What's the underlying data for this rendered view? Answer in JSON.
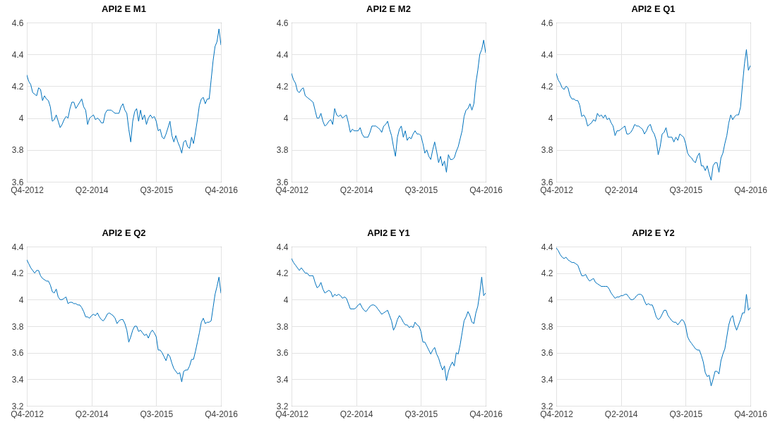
{
  "chart_data": [
    {
      "type": "line",
      "title": "API2 E M1",
      "ylim": [
        3.6,
        4.6
      ],
      "yticks": [
        3.6,
        3.8,
        4,
        4.2,
        4.4,
        4.6
      ],
      "grid": true,
      "categories": [
        "Q4-2012",
        null,
        null,
        null,
        null,
        null,
        null,
        null,
        null,
        null,
        null,
        null,
        null,
        null,
        null,
        null,
        null,
        null,
        null,
        null,
        null,
        null,
        null,
        null,
        null,
        null,
        null,
        null,
        null,
        null,
        null,
        null,
        null,
        "Q2-2014",
        null,
        null,
        null,
        null,
        null,
        null,
        null,
        null,
        null,
        null,
        null,
        null,
        null,
        null,
        null,
        null,
        null,
        null,
        null,
        null,
        null,
        null,
        null,
        null,
        null,
        null,
        null,
        null,
        null,
        null,
        null,
        null,
        "Q3-2015",
        null,
        null,
        null,
        null,
        null,
        null,
        null,
        null,
        null,
        null,
        null,
        null,
        null,
        null,
        null,
        null,
        null,
        null,
        null,
        null,
        null,
        null,
        null,
        null,
        null,
        null,
        null,
        null,
        null,
        null,
        null,
        null,
        "Q4-2016"
      ],
      "series": [
        {
          "color": "#0072bd",
          "values": [
            4.27,
            4.23,
            4.21,
            4.16,
            4.15,
            4.14,
            4.19,
            4.18,
            4.11,
            4.14,
            4.12,
            4.11,
            4.07,
            3.98,
            3.99,
            4.02,
            3.98,
            3.94,
            3.96,
            3.99,
            4.01,
            4.0,
            4.06,
            4.1,
            4.1,
            4.06,
            4.08,
            4.1,
            4.12,
            4.07,
            4.05,
            3.96,
            4.0,
            4.01,
            4.02,
            3.99,
            4.0,
            3.99,
            3.97,
            3.97,
            4.03,
            4.05,
            4.05,
            4.05,
            4.04,
            4.03,
            4.03,
            4.03,
            4.07,
            4.09,
            4.05,
            4.03,
            3.93,
            3.85,
            3.98,
            4.04,
            4.06,
            3.98,
            4.05,
            3.99,
            4.02,
            3.96,
            4.0,
            4.02,
            4.0,
            4.01,
            3.98,
            3.92,
            3.93,
            3.88,
            3.87,
            3.9,
            3.94,
            3.98,
            3.89,
            3.85,
            3.89,
            3.85,
            3.82,
            3.78,
            3.85,
            3.86,
            3.82,
            3.81,
            3.88,
            3.84,
            3.91,
            3.99,
            4.08,
            4.12,
            4.13,
            4.09,
            4.12,
            4.12,
            4.24,
            4.36,
            4.45,
            4.48,
            4.56,
            4.46
          ]
        }
      ]
    },
    {
      "type": "line",
      "title": "API2 E M2",
      "ylim": [
        3.6,
        4.6
      ],
      "yticks": [
        3.6,
        3.8,
        4,
        4.2,
        4.4,
        4.6
      ],
      "grid": true,
      "categories": [
        "Q4-2012",
        null,
        null,
        null,
        null,
        null,
        null,
        null,
        null,
        null,
        null,
        null,
        null,
        null,
        null,
        null,
        null,
        null,
        null,
        null,
        null,
        null,
        null,
        null,
        null,
        null,
        null,
        null,
        null,
        null,
        null,
        null,
        null,
        "Q2-2014",
        null,
        null,
        null,
        null,
        null,
        null,
        null,
        null,
        null,
        null,
        null,
        null,
        null,
        null,
        null,
        null,
        null,
        null,
        null,
        null,
        null,
        null,
        null,
        null,
        null,
        null,
        null,
        null,
        null,
        null,
        null,
        null,
        "Q3-2015",
        null,
        null,
        null,
        null,
        null,
        null,
        null,
        null,
        null,
        null,
        null,
        null,
        null,
        null,
        null,
        null,
        null,
        null,
        null,
        null,
        null,
        null,
        null,
        null,
        null,
        null,
        null,
        null,
        null,
        null,
        null,
        null,
        "Q4-2016"
      ],
      "series": [
        {
          "color": "#0072bd",
          "values": [
            4.28,
            4.24,
            4.22,
            4.17,
            4.16,
            4.18,
            4.19,
            4.14,
            4.13,
            4.12,
            4.11,
            4.1,
            4.05,
            4.0,
            4.0,
            4.03,
            3.98,
            3.95,
            3.96,
            3.98,
            3.99,
            3.96,
            4.06,
            4.02,
            4.01,
            4.02,
            4.0,
            4.01,
            4.02,
            3.97,
            3.91,
            3.93,
            3.92,
            3.92,
            3.92,
            3.94,
            3.9,
            3.88,
            3.88,
            3.88,
            3.91,
            3.95,
            3.95,
            3.95,
            3.94,
            3.93,
            3.91,
            3.95,
            3.96,
            3.98,
            3.93,
            3.89,
            3.82,
            3.76,
            3.88,
            3.93,
            3.95,
            3.88,
            3.92,
            3.86,
            3.88,
            3.87,
            3.9,
            3.92,
            3.9,
            3.9,
            3.89,
            3.84,
            3.78,
            3.8,
            3.76,
            3.74,
            3.8,
            3.85,
            3.79,
            3.72,
            3.76,
            3.7,
            3.73,
            3.66,
            3.77,
            3.74,
            3.74,
            3.75,
            3.79,
            3.82,
            3.87,
            3.92,
            4.01,
            4.05,
            4.06,
            4.09,
            4.05,
            4.09,
            4.22,
            4.3,
            4.4,
            4.43,
            4.49,
            4.41
          ]
        }
      ]
    },
    {
      "type": "line",
      "title": "API2 E Q1",
      "ylim": [
        3.6,
        4.6
      ],
      "yticks": [
        3.6,
        3.8,
        4,
        4.2,
        4.4,
        4.6
      ],
      "grid": true,
      "categories": [
        "Q4-2012",
        null,
        null,
        null,
        null,
        null,
        null,
        null,
        null,
        null,
        null,
        null,
        null,
        null,
        null,
        null,
        null,
        null,
        null,
        null,
        null,
        null,
        null,
        null,
        null,
        null,
        null,
        null,
        null,
        null,
        null,
        null,
        null,
        "Q2-2014",
        null,
        null,
        null,
        null,
        null,
        null,
        null,
        null,
        null,
        null,
        null,
        null,
        null,
        null,
        null,
        null,
        null,
        null,
        null,
        null,
        null,
        null,
        null,
        null,
        null,
        null,
        null,
        null,
        null,
        null,
        null,
        null,
        "Q3-2015",
        null,
        null,
        null,
        null,
        null,
        null,
        null,
        null,
        null,
        null,
        null,
        null,
        null,
        null,
        null,
        null,
        null,
        null,
        null,
        null,
        null,
        null,
        null,
        null,
        null,
        null,
        null,
        null,
        null,
        null,
        null,
        null,
        "Q4-2016"
      ],
      "series": [
        {
          "color": "#0072bd",
          "values": [
            4.28,
            4.24,
            4.22,
            4.19,
            4.18,
            4.2,
            4.19,
            4.14,
            4.12,
            4.12,
            4.11,
            4.11,
            4.08,
            4.01,
            4.02,
            4.0,
            3.95,
            3.96,
            3.97,
            3.99,
            3.98,
            4.03,
            4.01,
            4.02,
            4.0,
            4.02,
            3.99,
            4.0,
            3.97,
            3.95,
            3.89,
            3.92,
            3.92,
            3.93,
            3.94,
            3.95,
            3.9,
            3.9,
            3.91,
            3.93,
            3.96,
            3.95,
            3.95,
            3.94,
            3.93,
            3.9,
            3.92,
            3.95,
            3.96,
            3.92,
            3.9,
            3.86,
            3.77,
            3.82,
            3.9,
            3.91,
            3.94,
            3.88,
            3.88,
            3.88,
            3.85,
            3.88,
            3.86,
            3.9,
            3.89,
            3.88,
            3.84,
            3.78,
            3.76,
            3.75,
            3.73,
            3.72,
            3.76,
            3.78,
            3.7,
            3.7,
            3.67,
            3.7,
            3.65,
            3.61,
            3.7,
            3.72,
            3.72,
            3.66,
            3.75,
            3.78,
            3.84,
            3.89,
            3.97,
            4.02,
            3.99,
            4.01,
            4.02,
            4.02,
            4.07,
            4.21,
            4.34,
            4.43,
            4.3,
            4.33
          ]
        }
      ]
    },
    {
      "type": "line",
      "title": "API2 E Q2",
      "ylim": [
        3.2,
        4.4
      ],
      "yticks": [
        3.2,
        3.4,
        3.6,
        3.8,
        4,
        4.2,
        4.4
      ],
      "grid": true,
      "categories": [
        "Q4-2012",
        null,
        null,
        null,
        null,
        null,
        null,
        null,
        null,
        null,
        null,
        null,
        null,
        null,
        null,
        null,
        null,
        null,
        null,
        null,
        null,
        null,
        null,
        null,
        null,
        null,
        null,
        null,
        null,
        null,
        null,
        null,
        null,
        "Q2-2014",
        null,
        null,
        null,
        null,
        null,
        null,
        null,
        null,
        null,
        null,
        null,
        null,
        null,
        null,
        null,
        null,
        null,
        null,
        null,
        null,
        null,
        null,
        null,
        null,
        null,
        null,
        null,
        null,
        null,
        null,
        null,
        null,
        "Q3-2015",
        null,
        null,
        null,
        null,
        null,
        null,
        null,
        null,
        null,
        null,
        null,
        null,
        null,
        null,
        null,
        null,
        null,
        null,
        null,
        null,
        null,
        null,
        null,
        null,
        null,
        null,
        null,
        null,
        null,
        null,
        null,
        null,
        "Q4-2016"
      ],
      "series": [
        {
          "color": "#0072bd",
          "values": [
            4.3,
            4.27,
            4.24,
            4.22,
            4.2,
            4.22,
            4.22,
            4.18,
            4.16,
            4.15,
            4.14,
            4.14,
            4.11,
            4.06,
            4.05,
            4.08,
            4.02,
            4.0,
            4.0,
            4.01,
            4.02,
            3.97,
            3.98,
            3.98,
            3.97,
            3.97,
            3.96,
            3.96,
            3.94,
            3.91,
            3.87,
            3.87,
            3.86,
            3.88,
            3.89,
            3.88,
            3.9,
            3.87,
            3.85,
            3.84,
            3.86,
            3.89,
            3.9,
            3.89,
            3.88,
            3.86,
            3.82,
            3.84,
            3.85,
            3.85,
            3.82,
            3.77,
            3.68,
            3.72,
            3.77,
            3.8,
            3.8,
            3.76,
            3.77,
            3.75,
            3.73,
            3.74,
            3.71,
            3.75,
            3.77,
            3.75,
            3.72,
            3.62,
            3.62,
            3.6,
            3.57,
            3.54,
            3.59,
            3.57,
            3.52,
            3.48,
            3.46,
            3.44,
            3.45,
            3.38,
            3.46,
            3.47,
            3.47,
            3.5,
            3.55,
            3.55,
            3.61,
            3.68,
            3.75,
            3.83,
            3.86,
            3.82,
            3.83,
            3.83,
            3.84,
            3.94,
            4.04,
            4.1,
            4.17,
            4.05
          ]
        }
      ]
    },
    {
      "type": "line",
      "title": "API2 E Y1",
      "ylim": [
        3.2,
        4.4
      ],
      "yticks": [
        3.2,
        3.4,
        3.6,
        3.8,
        4,
        4.2,
        4.4
      ],
      "grid": true,
      "categories": [
        "Q4-2012",
        null,
        null,
        null,
        null,
        null,
        null,
        null,
        null,
        null,
        null,
        null,
        null,
        null,
        null,
        null,
        null,
        null,
        null,
        null,
        null,
        null,
        null,
        null,
        null,
        null,
        null,
        null,
        null,
        null,
        null,
        null,
        null,
        "Q2-2014",
        null,
        null,
        null,
        null,
        null,
        null,
        null,
        null,
        null,
        null,
        null,
        null,
        null,
        null,
        null,
        null,
        null,
        null,
        null,
        null,
        null,
        null,
        null,
        null,
        null,
        null,
        null,
        null,
        null,
        null,
        null,
        null,
        "Q3-2015",
        null,
        null,
        null,
        null,
        null,
        null,
        null,
        null,
        null,
        null,
        null,
        null,
        null,
        null,
        null,
        null,
        null,
        null,
        null,
        null,
        null,
        null,
        null,
        null,
        null,
        null,
        null,
        null,
        null,
        null,
        null,
        null,
        "Q4-2016"
      ],
      "series": [
        {
          "color": "#0072bd",
          "values": [
            4.31,
            4.28,
            4.26,
            4.24,
            4.22,
            4.24,
            4.22,
            4.2,
            4.2,
            4.18,
            4.18,
            4.18,
            4.13,
            4.09,
            4.1,
            4.13,
            4.08,
            4.05,
            4.06,
            4.07,
            4.06,
            4.02,
            4.04,
            4.03,
            4.04,
            4.03,
            4.01,
            4.02,
            4.01,
            3.97,
            3.93,
            3.93,
            3.93,
            3.94,
            3.96,
            3.97,
            3.94,
            3.92,
            3.91,
            3.93,
            3.95,
            3.96,
            3.96,
            3.95,
            3.93,
            3.91,
            3.89,
            3.9,
            3.91,
            3.92,
            3.88,
            3.84,
            3.77,
            3.8,
            3.85,
            3.88,
            3.86,
            3.83,
            3.81,
            3.81,
            3.79,
            3.8,
            3.79,
            3.83,
            3.81,
            3.8,
            3.76,
            3.68,
            3.68,
            3.65,
            3.62,
            3.59,
            3.62,
            3.64,
            3.59,
            3.56,
            3.51,
            3.47,
            3.5,
            3.39,
            3.46,
            3.5,
            3.53,
            3.5,
            3.6,
            3.59,
            3.66,
            3.75,
            3.84,
            3.87,
            3.91,
            3.88,
            3.83,
            3.82,
            3.9,
            3.95,
            4.05,
            4.17,
            4.03,
            4.05
          ]
        }
      ]
    },
    {
      "type": "line",
      "title": "API2 E Y2",
      "ylim": [
        3.2,
        4.4
      ],
      "yticks": [
        3.2,
        3.4,
        3.6,
        3.8,
        4,
        4.2,
        4.4
      ],
      "grid": true,
      "categories": [
        "Q4-2012",
        null,
        null,
        null,
        null,
        null,
        null,
        null,
        null,
        null,
        null,
        null,
        null,
        null,
        null,
        null,
        null,
        null,
        null,
        null,
        null,
        null,
        null,
        null,
        null,
        null,
        null,
        null,
        null,
        null,
        null,
        null,
        null,
        "Q2-2014",
        null,
        null,
        null,
        null,
        null,
        null,
        null,
        null,
        null,
        null,
        null,
        null,
        null,
        null,
        null,
        null,
        null,
        null,
        null,
        null,
        null,
        null,
        null,
        null,
        null,
        null,
        null,
        null,
        null,
        null,
        null,
        null,
        "Q3-2015",
        null,
        null,
        null,
        null,
        null,
        null,
        null,
        null,
        null,
        null,
        null,
        null,
        null,
        null,
        null,
        null,
        null,
        null,
        null,
        null,
        null,
        null,
        null,
        null,
        null,
        null,
        null,
        null,
        null,
        null,
        null,
        null,
        "Q4-2016"
      ],
      "series": [
        {
          "color": "#0072bd",
          "values": [
            4.39,
            4.37,
            4.34,
            4.32,
            4.31,
            4.32,
            4.3,
            4.29,
            4.28,
            4.28,
            4.27,
            4.26,
            4.22,
            4.18,
            4.18,
            4.19,
            4.16,
            4.14,
            4.15,
            4.16,
            4.13,
            4.12,
            4.11,
            4.1,
            4.1,
            4.1,
            4.1,
            4.08,
            4.05,
            4.03,
            4.01,
            4.02,
            4.02,
            4.03,
            4.03,
            4.04,
            4.04,
            4.02,
            4.0,
            4.0,
            4.01,
            4.03,
            4.04,
            4.04,
            4.03,
            3.99,
            3.96,
            3.97,
            3.96,
            3.96,
            3.92,
            3.87,
            3.85,
            3.86,
            3.89,
            3.92,
            3.92,
            3.88,
            3.86,
            3.84,
            3.83,
            3.83,
            3.81,
            3.83,
            3.85,
            3.84,
            3.8,
            3.72,
            3.69,
            3.67,
            3.65,
            3.63,
            3.62,
            3.62,
            3.58,
            3.53,
            3.45,
            3.42,
            3.43,
            3.35,
            3.4,
            3.46,
            3.46,
            3.44,
            3.54,
            3.59,
            3.63,
            3.72,
            3.81,
            3.86,
            3.88,
            3.81,
            3.77,
            3.81,
            3.85,
            3.9,
            3.9,
            4.04,
            3.92,
            3.94
          ]
        }
      ]
    }
  ]
}
